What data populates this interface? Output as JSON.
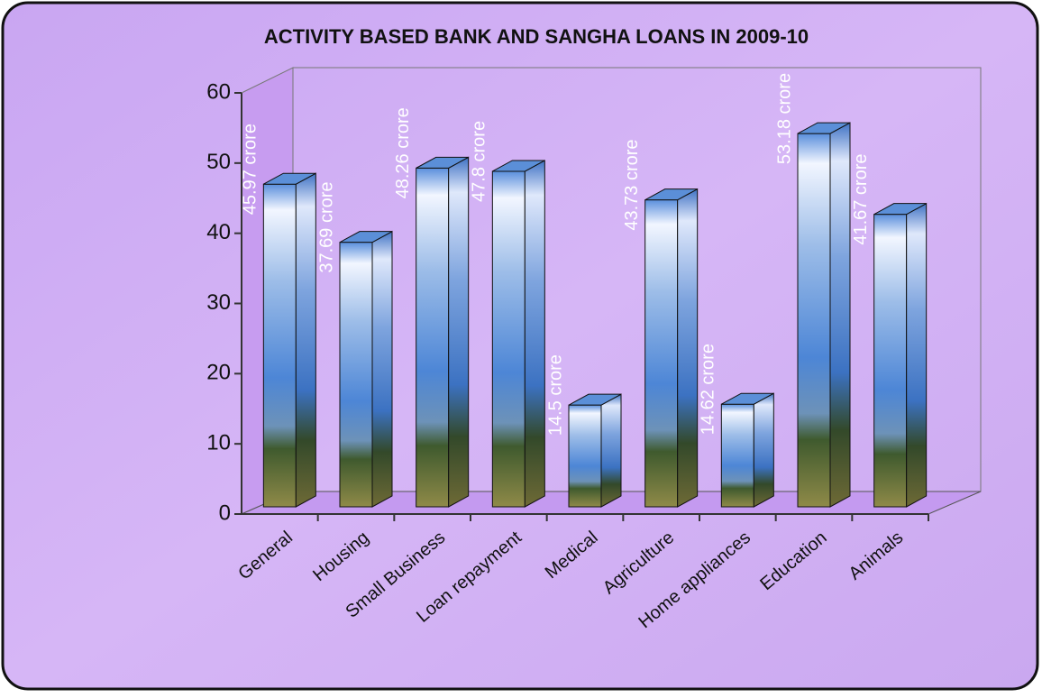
{
  "chart_data": {
    "type": "bar3d",
    "title": "ACTIVITY BASED BANK AND SANGHA LOANS IN 2009-10",
    "categories": [
      "General",
      "Housing",
      "Small Business",
      "Loan repayment",
      "Medical",
      "Agriculture",
      "Home appliances",
      "Education",
      "Animals"
    ],
    "values": [
      45.97,
      37.69,
      48.26,
      47.8,
      14.5,
      43.73,
      14.62,
      53.18,
      41.67
    ],
    "value_labels": [
      "45.97 crore",
      "37.69 crore",
      "48.26 crore",
      "47.8 crore",
      "14.5 crore",
      "43.73 crore",
      "14.62 crore",
      "53.18 crore",
      "41.67 crore"
    ],
    "ylim": [
      0,
      60
    ],
    "yticks": [
      0,
      10,
      20,
      30,
      40,
      50,
      60
    ]
  }
}
